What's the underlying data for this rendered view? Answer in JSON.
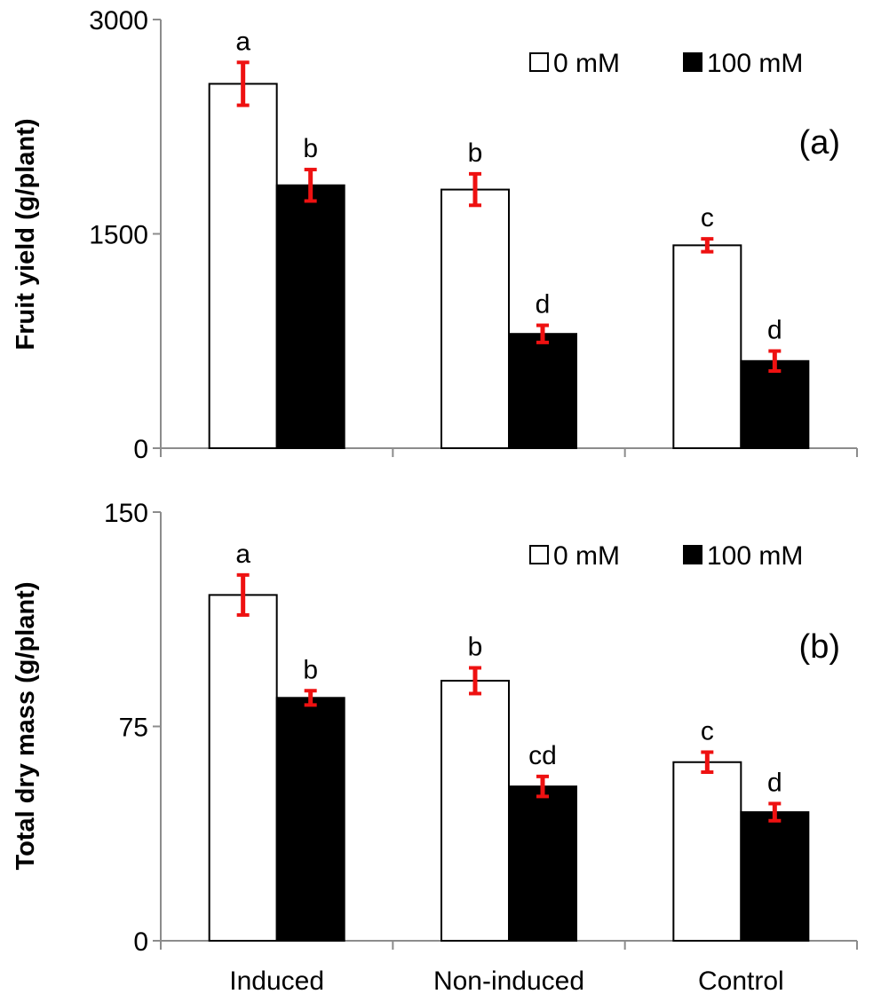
{
  "chart_data": [
    {
      "type": "bar",
      "panel_tag": "(a)",
      "ylabel": "Fruit yield (g/plant)",
      "ylim": [
        0,
        3000
      ],
      "yticks": [
        "0",
        "1500",
        "3000"
      ],
      "ytick_values": [
        0,
        1500,
        3000
      ],
      "categories": [
        "Induced",
        "Non-induced",
        "Control"
      ],
      "show_category_labels": false,
      "legend": {
        "position": "top-right",
        "entries": [
          "0 mM",
          "100 mM"
        ]
      },
      "grid": false,
      "series": [
        {
          "name": "0 mM",
          "fill": "#ffffff",
          "values": [
            2550,
            1810,
            1420
          ],
          "errors": [
            150,
            110,
            45
          ],
          "labels": [
            "a",
            "b",
            "c"
          ]
        },
        {
          "name": "100 mM",
          "fill": "#000000",
          "values": [
            1840,
            800,
            610
          ],
          "errors": [
            110,
            60,
            70
          ],
          "labels": [
            "b",
            "d",
            "d"
          ]
        }
      ],
      "error_bar_color": "#ee1111"
    },
    {
      "type": "bar",
      "panel_tag": "(b)",
      "ylabel": "Total dry mass (g/plant)",
      "ylim": [
        0,
        150
      ],
      "yticks": [
        "0",
        "75",
        "150"
      ],
      "ytick_values": [
        0,
        75,
        150
      ],
      "categories": [
        "Induced",
        "Non-induced",
        "Control"
      ],
      "show_category_labels": true,
      "legend": {
        "position": "top-right",
        "entries": [
          "0 mM",
          "100 mM"
        ]
      },
      "grid": false,
      "series": [
        {
          "name": "0 mM",
          "fill": "#ffffff",
          "values": [
            121,
            91,
            62.5
          ],
          "errors": [
            7,
            4.5,
            3.5
          ],
          "labels": [
            "a",
            "b",
            "c"
          ]
        },
        {
          "name": "100 mM",
          "fill": "#000000",
          "values": [
            85,
            54,
            45
          ],
          "errors": [
            2.5,
            3.5,
            3
          ],
          "labels": [
            "b",
            "cd",
            "d"
          ]
        }
      ],
      "error_bar_color": "#ee1111"
    }
  ]
}
